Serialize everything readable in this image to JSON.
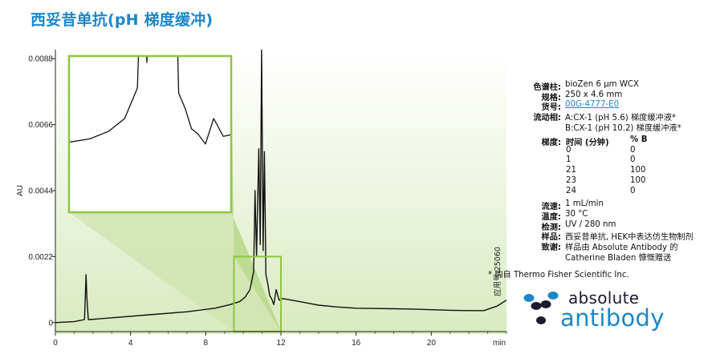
{
  "title": "西妥昔单抗(pH 梯度缓冲)",
  "chart_data": {
    "type": "line",
    "title": "西妥昔单抗(pH 梯度缓冲)",
    "xlabel": "min",
    "ylabel": "AU",
    "xlim": [
      0,
      24
    ],
    "ylim": [
      -0.0003,
      0.0091
    ],
    "xticks": [
      0,
      4,
      8,
      12,
      16,
      20
    ],
    "xtick_labels": [
      "0",
      "4",
      "8",
      "12",
      "16",
      "20"
    ],
    "yticks": [
      0,
      0.0022,
      0.0044,
      0.0066,
      0.0088
    ],
    "ytick_labels": [
      "0",
      "0.0022",
      "0.0044",
      "0.0066",
      "0.0088"
    ],
    "grid": false,
    "series": [
      {
        "x": [
          0.0,
          1.0,
          1.55,
          1.63,
          1.68,
          1.75,
          1.85,
          2.2,
          3.0,
          5.0,
          7.0,
          8.5,
          9.3,
          9.8,
          10.1,
          10.35,
          10.55,
          10.62,
          10.7,
          10.82,
          10.9,
          10.97,
          11.05,
          11.12,
          11.2,
          11.3,
          11.4,
          11.5,
          11.62,
          11.75,
          11.9,
          12.1,
          13.0,
          14.0,
          15.0,
          16.0,
          17.0,
          18.0,
          19.0,
          20.0,
          21.0,
          22.0,
          22.8,
          23.5,
          24.0
        ],
        "y": [
          0.0,
          3e-05,
          0.0001,
          0.0016,
          0.0008,
          0.0001,
          0.0001,
          0.00012,
          0.00016,
          0.00026,
          0.00036,
          0.00048,
          0.0006,
          0.0007,
          0.00085,
          0.0011,
          0.0017,
          0.0044,
          0.0022,
          0.0058,
          0.0026,
          0.0091,
          0.0024,
          0.0057,
          0.0016,
          0.0013,
          0.0009,
          0.0008,
          0.0006,
          0.0011,
          0.00075,
          0.0008,
          0.0007,
          0.00058,
          0.00052,
          0.00048,
          0.00047,
          0.00046,
          0.00045,
          0.00043,
          0.00041,
          0.0004,
          0.0004,
          0.00055,
          0.00075
        ],
        "color": "#111111"
      }
    ],
    "inset": {
      "x_range": [
        9.5,
        12.0
      ],
      "y_range": [
        -0.0003,
        0.0022
      ]
    }
  },
  "annotation": "应用号:25060",
  "method": {
    "rows": [
      {
        "label": "色谱柱:",
        "value": "bioZen 6 μm WCX"
      },
      {
        "label": "规格:",
        "value": "250 x 4.6 mm"
      },
      {
        "label": "货号:",
        "value": "00G-4777-E0",
        "link": true
      },
      {
        "label": "流动相:",
        "value": "A:CX-1 (pH 5.6) 梯度缓冲液*"
      },
      {
        "label": "",
        "value": "B:CX-1 (pH 10.2) 梯度缓冲液*"
      }
    ],
    "gradient": {
      "label": "梯度:",
      "header": [
        "时间 (分钟)",
        "% B"
      ],
      "rows": [
        [
          "0",
          "0"
        ],
        [
          "1",
          "0"
        ],
        [
          "21",
          "100"
        ],
        [
          "23",
          "100"
        ],
        [
          "24",
          "0"
        ]
      ]
    },
    "rows2": [
      {
        "label": "流速:",
        "value": "1 mL/min"
      },
      {
        "label": "温度:",
        "value": "30 °C"
      },
      {
        "label": "检测:",
        "value": "UV / 280 nm"
      },
      {
        "label": "样品:",
        "value": "西妥昔单抗, HEK中表达仿生物制剂"
      },
      {
        "label": "致谢:",
        "value": "样品由 Absolute Antibody 的"
      },
      {
        "label": "",
        "value": "Catherine Bladen 慷慨赠送"
      }
    ]
  },
  "footnote": "* 购自 Thermo Fisher Scientific Inc.",
  "logo": {
    "line1": "absolute",
    "line2": "antibody",
    "brand_color": "#1c87c9",
    "dark_color": "#1b1b2e"
  },
  "colors": {
    "title": "#1c87c9",
    "accent_green": "#8dc63f",
    "link": "#1c87c9"
  }
}
